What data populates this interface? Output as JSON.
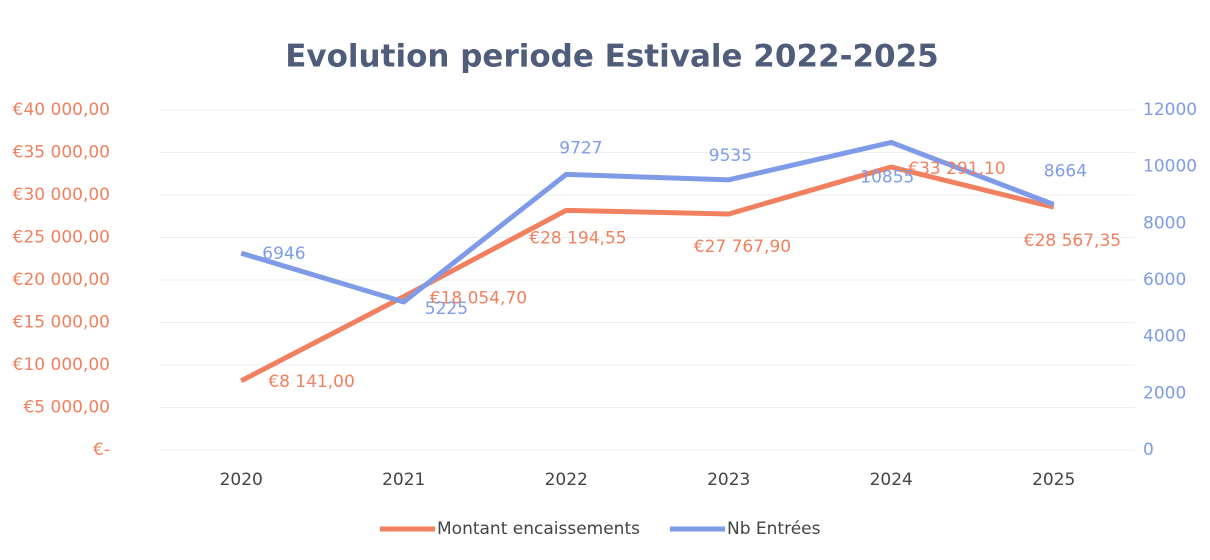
{
  "chart_data": {
    "type": "line",
    "title": "Evolution periode Estivale 2022-2025",
    "categories": [
      "2020",
      "2021",
      "2022",
      "2023",
      "2024",
      "2025"
    ],
    "series": [
      {
        "name": "Montant encaissements",
        "color": "#f0805f",
        "axis": "y",
        "values": [
          8141,
          18054.7,
          28194.55,
          27767.9,
          33291.1,
          28567.35
        ],
        "value_labels": [
          "€8 141,00",
          "€18 054,70",
          "€28 194,55",
          "€27 767,90",
          "€33 291,10",
          "€28 567,35"
        ]
      },
      {
        "name": "Nb Entrées",
        "color": "#7f9be8",
        "axis": "y2",
        "values": [
          6946,
          5225,
          9727,
          9535,
          10855,
          8664
        ]
      }
    ],
    "ylim": [
      0,
      40000
    ],
    "yticks": [
      {
        "value": 0,
        "label": "€-"
      },
      {
        "value": 5000,
        "label": "€5 000,00"
      },
      {
        "value": 10000,
        "label": "€10 000,00"
      },
      {
        "value": 15000,
        "label": "€15 000,00"
      },
      {
        "value": 20000,
        "label": "€20 000,00"
      },
      {
        "value": 25000,
        "label": "€25 000,00"
      },
      {
        "value": 30000,
        "label": "€30 000,00"
      },
      {
        "value": 35000,
        "label": "€35 000,00"
      },
      {
        "value": 40000,
        "label": "€40 000,00"
      }
    ],
    "y2lim": [
      0,
      12000
    ],
    "y2ticks": [
      0,
      2000,
      4000,
      6000,
      8000,
      10000,
      12000
    ],
    "grid": true,
    "legend": "bottom"
  }
}
